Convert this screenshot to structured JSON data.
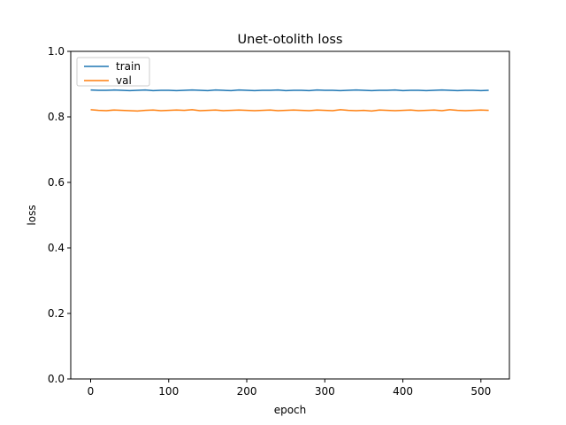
{
  "chart_data": {
    "type": "line",
    "title": "Unet-otolith loss",
    "xlabel": "epoch",
    "ylabel": "loss",
    "xlim": [
      -25.5,
      536.5
    ],
    "ylim": [
      0.0,
      1.0
    ],
    "xticks": [
      0,
      100,
      200,
      300,
      400,
      500
    ],
    "yticks": [
      0.0,
      0.2,
      0.4,
      0.6,
      0.8,
      1.0
    ],
    "xtick_labels": [
      "0",
      "100",
      "200",
      "300",
      "400",
      "500"
    ],
    "ytick_labels": [
      "0.0",
      "0.2",
      "0.4",
      "0.6",
      "0.8",
      "1.0"
    ],
    "grid": false,
    "legend": "upper left",
    "series": [
      {
        "name": "train",
        "color": "#1f77b4",
        "x": [
          0,
          10,
          20,
          30,
          40,
          50,
          60,
          70,
          80,
          90,
          100,
          110,
          120,
          130,
          140,
          150,
          160,
          170,
          180,
          190,
          200,
          210,
          220,
          230,
          240,
          250,
          260,
          270,
          280,
          290,
          300,
          310,
          320,
          330,
          340,
          350,
          360,
          370,
          380,
          390,
          400,
          410,
          420,
          430,
          440,
          450,
          460,
          470,
          480,
          490,
          500,
          510
        ],
        "y": [
          0.882,
          0.881,
          0.881,
          0.882,
          0.881,
          0.88,
          0.881,
          0.882,
          0.88,
          0.881,
          0.881,
          0.88,
          0.881,
          0.882,
          0.881,
          0.88,
          0.882,
          0.881,
          0.88,
          0.882,
          0.881,
          0.88,
          0.881,
          0.881,
          0.882,
          0.88,
          0.881,
          0.881,
          0.88,
          0.882,
          0.881,
          0.881,
          0.88,
          0.881,
          0.882,
          0.881,
          0.88,
          0.881,
          0.881,
          0.882,
          0.88,
          0.881,
          0.881,
          0.88,
          0.881,
          0.882,
          0.881,
          0.88,
          0.881,
          0.881,
          0.88,
          0.881
        ]
      },
      {
        "name": "val",
        "color": "#ff7f0e",
        "x": [
          0,
          10,
          20,
          30,
          40,
          50,
          60,
          70,
          80,
          90,
          100,
          110,
          120,
          130,
          140,
          150,
          160,
          170,
          180,
          190,
          200,
          210,
          220,
          230,
          240,
          250,
          260,
          270,
          280,
          290,
          300,
          310,
          320,
          330,
          340,
          350,
          360,
          370,
          380,
          390,
          400,
          410,
          420,
          430,
          440,
          450,
          460,
          470,
          480,
          490,
          500,
          510
        ],
        "y": [
          0.822,
          0.82,
          0.819,
          0.821,
          0.82,
          0.819,
          0.818,
          0.82,
          0.821,
          0.819,
          0.82,
          0.821,
          0.82,
          0.822,
          0.819,
          0.82,
          0.821,
          0.819,
          0.82,
          0.821,
          0.82,
          0.819,
          0.82,
          0.821,
          0.819,
          0.82,
          0.821,
          0.82,
          0.819,
          0.821,
          0.82,
          0.819,
          0.822,
          0.82,
          0.819,
          0.82,
          0.818,
          0.821,
          0.82,
          0.819,
          0.82,
          0.821,
          0.819,
          0.82,
          0.821,
          0.819,
          0.822,
          0.82,
          0.819,
          0.82,
          0.821,
          0.82
        ]
      }
    ]
  }
}
